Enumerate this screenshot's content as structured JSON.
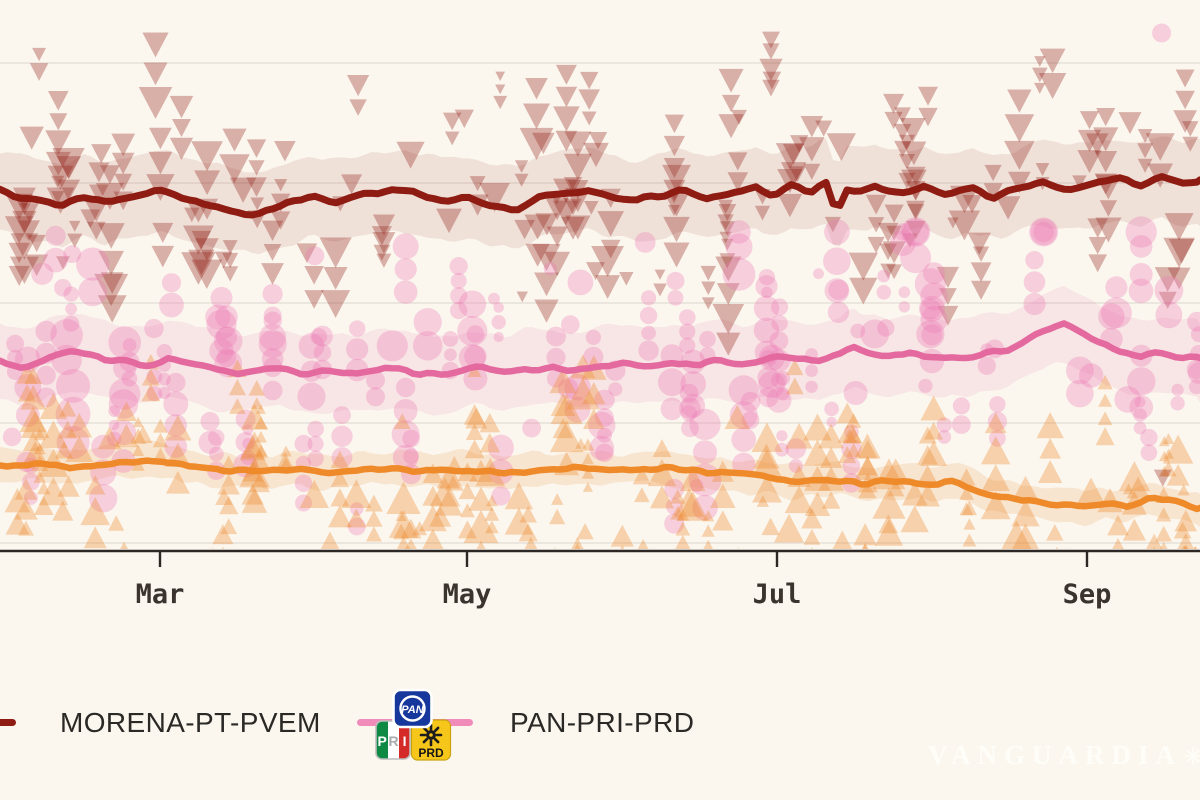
{
  "page": {
    "background": "#fbf7ef",
    "axis_color": "#2e2824",
    "gridline_color": "#e2ddd4"
  },
  "chart_data": {
    "type": "scatter",
    "title": "",
    "description": "Poll-tracker: individual poll results (markers) with smoothed trend lines and confidence bands for Mexican coalitions",
    "x_axis": {
      "tick_labels": [
        "Mar",
        "May",
        "Jul",
        "Sep"
      ],
      "axis_line": true
    },
    "y_axis": {
      "labels_cropped_offscreen": true,
      "gridline_values_pct": [
        60,
        50,
        40,
        30,
        20
      ],
      "grid": true
    },
    "series": [
      {
        "id": "morena",
        "legend_label": "MORENA-PT-PVEM",
        "line_color": "#8e1c12",
        "line_width": 7,
        "marker": "triangle-down",
        "marker_color": "#8e1c12",
        "marker_opacity": 0.32,
        "scatter_points_est": 300,
        "scatter_spread_pct": 4.8,
        "band_halfwidth_pct": 3.4,
        "band_opacity": 0.1,
        "trend": [
          [
            0,
            49.2
          ],
          [
            0.03,
            48.6
          ],
          [
            0.05,
            48.1
          ],
          [
            0.07,
            48.8
          ],
          [
            0.09,
            48.3
          ],
          [
            0.11,
            48.9
          ],
          [
            0.13,
            49.3
          ],
          [
            0.15,
            48.8
          ],
          [
            0.17,
            48.3
          ],
          [
            0.19,
            47.9
          ],
          [
            0.215,
            47.3
          ],
          [
            0.24,
            48.2
          ],
          [
            0.26,
            48.9
          ],
          [
            0.28,
            48.5
          ],
          [
            0.3,
            48.9
          ],
          [
            0.33,
            49.4
          ],
          [
            0.35,
            49.1
          ],
          [
            0.37,
            48.6
          ],
          [
            0.39,
            48.8
          ],
          [
            0.41,
            48.3
          ],
          [
            0.43,
            47.9
          ],
          [
            0.45,
            48.8
          ],
          [
            0.47,
            49.2
          ],
          [
            0.49,
            49.5
          ],
          [
            0.51,
            48.9
          ],
          [
            0.53,
            48.4
          ],
          [
            0.55,
            49.0
          ],
          [
            0.57,
            49.4
          ],
          [
            0.59,
            48.8
          ],
          [
            0.61,
            49.3
          ],
          [
            0.63,
            49.7
          ],
          [
            0.645,
            48.9
          ],
          [
            0.66,
            49.8
          ],
          [
            0.675,
            49.3
          ],
          [
            0.688,
            50.3
          ],
          [
            0.697,
            47.6
          ],
          [
            0.706,
            49.6
          ],
          [
            0.72,
            49.3
          ],
          [
            0.73,
            49.8
          ],
          [
            0.75,
            49.1
          ],
          [
            0.77,
            49.6
          ],
          [
            0.79,
            48.9
          ],
          [
            0.81,
            49.4
          ],
          [
            0.83,
            48.8
          ],
          [
            0.85,
            49.6
          ],
          [
            0.87,
            50.1
          ],
          [
            0.89,
            49.5
          ],
          [
            0.91,
            49.9
          ],
          [
            0.93,
            50.4
          ],
          [
            0.95,
            49.9
          ],
          [
            0.97,
            50.6
          ],
          [
            0.985,
            49.9
          ],
          [
            1,
            50.2
          ]
        ]
      },
      {
        "id": "pan-pri-prd",
        "legend_label": "PAN-PRI-PRD",
        "line_color": "#e4699f",
        "line_width": 6.5,
        "marker": "circle",
        "marker_color": "#ec79b4",
        "marker_opacity": 0.32,
        "scatter_points_est": 310,
        "scatter_spread_pct": 5.1,
        "band_halfwidth_pct": 3.2,
        "band_opacity": 0.13,
        "trend": [
          [
            0,
            35.0
          ],
          [
            0.02,
            34.6
          ],
          [
            0.04,
            35.4
          ],
          [
            0.06,
            35.9
          ],
          [
            0.08,
            35.5
          ],
          [
            0.1,
            35.1
          ],
          [
            0.12,
            34.7
          ],
          [
            0.14,
            35.3
          ],
          [
            0.16,
            34.9
          ],
          [
            0.18,
            34.5
          ],
          [
            0.2,
            34.2
          ],
          [
            0.22,
            34.6
          ],
          [
            0.24,
            34.3
          ],
          [
            0.26,
            34.1
          ],
          [
            0.28,
            34.4
          ],
          [
            0.3,
            34.1
          ],
          [
            0.32,
            34.5
          ],
          [
            0.34,
            34.3
          ],
          [
            0.36,
            34.0
          ],
          [
            0.38,
            34.3
          ],
          [
            0.4,
            34.6
          ],
          [
            0.42,
            34.2
          ],
          [
            0.44,
            34.5
          ],
          [
            0.46,
            34.8
          ],
          [
            0.48,
            34.3
          ],
          [
            0.5,
            34.7
          ],
          [
            0.52,
            35.0
          ],
          [
            0.54,
            34.7
          ],
          [
            0.56,
            35.1
          ],
          [
            0.58,
            34.8
          ],
          [
            0.6,
            35.2
          ],
          [
            0.62,
            34.8
          ],
          [
            0.64,
            35.3
          ],
          [
            0.66,
            35.5
          ],
          [
            0.68,
            35.1
          ],
          [
            0.7,
            35.7
          ],
          [
            0.71,
            36.3
          ],
          [
            0.72,
            35.8
          ],
          [
            0.74,
            35.4
          ],
          [
            0.76,
            35.8
          ],
          [
            0.78,
            35.5
          ],
          [
            0.8,
            35.3
          ],
          [
            0.82,
            35.8
          ],
          [
            0.84,
            36.2
          ],
          [
            0.855,
            36.8
          ],
          [
            0.87,
            37.7
          ],
          [
            0.885,
            38.3
          ],
          [
            0.9,
            37.7
          ],
          [
            0.915,
            36.7
          ],
          [
            0.93,
            35.9
          ],
          [
            0.95,
            35.5
          ],
          [
            0.97,
            35.8
          ],
          [
            0.985,
            35.5
          ],
          [
            1,
            35.3
          ]
        ]
      },
      {
        "id": "orange-series",
        "legend_label": null,
        "line_color": "#ef8a2b",
        "line_width": 6.5,
        "marker": "triangle-up",
        "marker_color": "#ee8a2d",
        "marker_opacity": 0.35,
        "scatter_points_est": 320,
        "scatter_spread_pct": 4.3,
        "band_halfwidth_pct": 1.35,
        "band_opacity": 0.16,
        "trend": [
          [
            0,
            26.3
          ],
          [
            0.03,
            26.7
          ],
          [
            0.06,
            26.3
          ],
          [
            0.09,
            26.6
          ],
          [
            0.12,
            27.0
          ],
          [
            0.15,
            26.5
          ],
          [
            0.18,
            26.1
          ],
          [
            0.21,
            25.9
          ],
          [
            0.24,
            26.2
          ],
          [
            0.27,
            25.9
          ],
          [
            0.3,
            26.1
          ],
          [
            0.33,
            26.3
          ],
          [
            0.36,
            26.0
          ],
          [
            0.39,
            26.2
          ],
          [
            0.42,
            25.9
          ],
          [
            0.45,
            26.1
          ],
          [
            0.48,
            26.3
          ],
          [
            0.51,
            26.0
          ],
          [
            0.54,
            26.3
          ],
          [
            0.57,
            26.1
          ],
          [
            0.6,
            25.8
          ],
          [
            0.63,
            25.5
          ],
          [
            0.66,
            25.2
          ],
          [
            0.69,
            25.4
          ],
          [
            0.72,
            25.0
          ],
          [
            0.75,
            25.2
          ],
          [
            0.78,
            24.9
          ],
          [
            0.8,
            25.1
          ],
          [
            0.82,
            24.3
          ],
          [
            0.85,
            23.6
          ],
          [
            0.88,
            23.2
          ],
          [
            0.9,
            23.0
          ],
          [
            0.92,
            23.3
          ],
          [
            0.94,
            23.0
          ],
          [
            0.96,
            23.8
          ],
          [
            0.98,
            23.3
          ],
          [
            1,
            22.9
          ]
        ]
      }
    ],
    "outliers": [
      {
        "series": "pan-pri-prd",
        "x_frac": 0.968,
        "value_pct": 62.5,
        "marker": "circle"
      },
      {
        "series": "morena",
        "x_frac": 0.969,
        "value_pct": 25.4,
        "marker": "triangle-down"
      }
    ]
  },
  "legend": {
    "items": [
      {
        "label": "MORENA-PT-PVEM",
        "swatch_color": "#8e1c12"
      },
      {
        "label": "PAN-PRI-PRD",
        "swatch_color": "#f18cba"
      }
    ]
  },
  "logos": {
    "pan_text": "PAN",
    "pan_blue": "#16379b",
    "pri_p": "P",
    "pri_r": "R",
    "pri_i": "I",
    "pri_green": "#0e8a44",
    "pri_red": "#d42a28",
    "prd_text": "PRD",
    "prd_yellow": "#f7c61b"
  },
  "watermark": {
    "text": "VANGUARDIA",
    "mark": "✳"
  }
}
